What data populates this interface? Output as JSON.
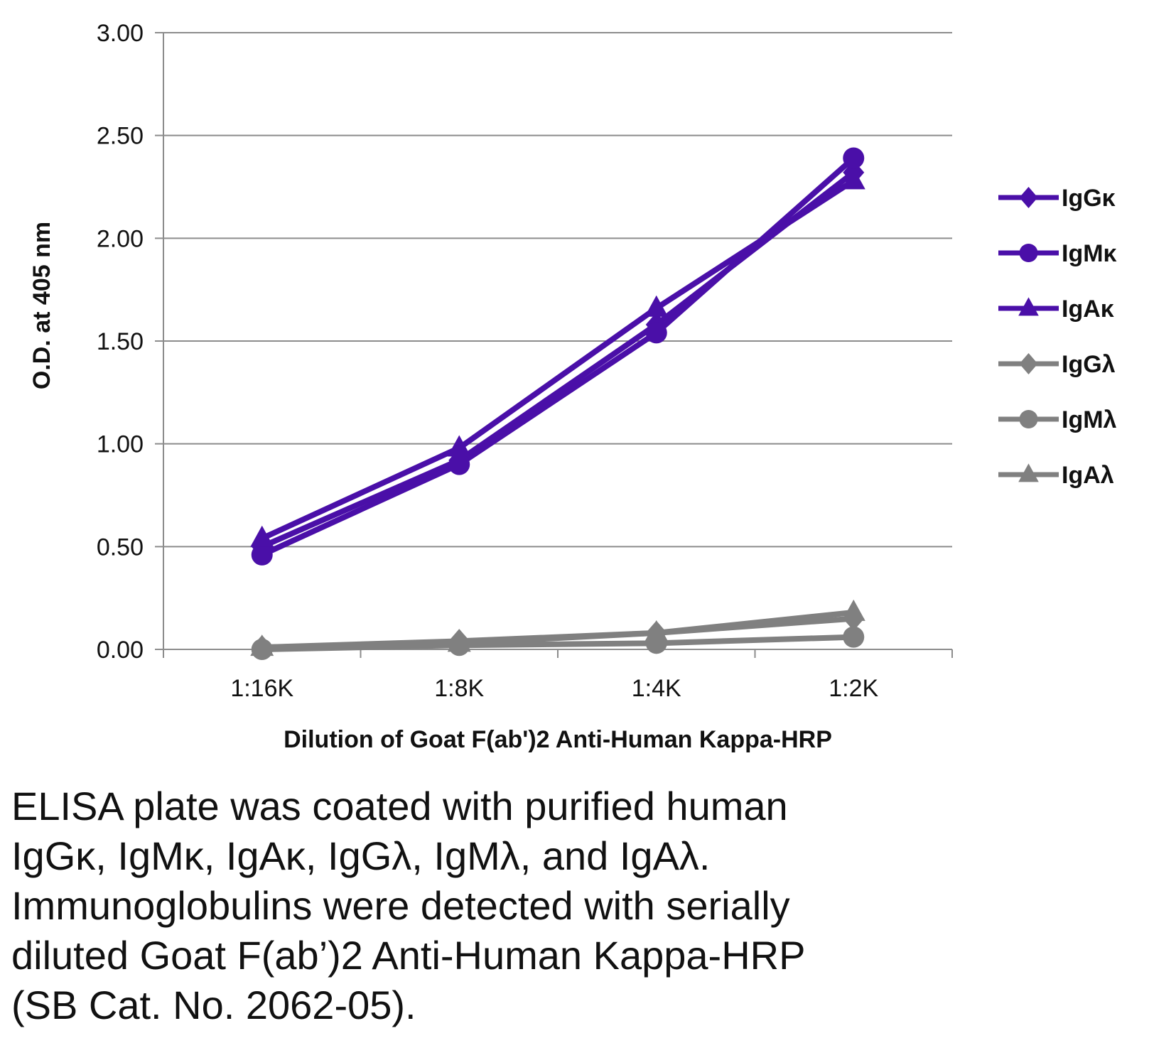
{
  "chart_data": {
    "type": "line",
    "categories": [
      "1:16K",
      "1:8K",
      "1:4K",
      "1:2K"
    ],
    "xlabel": "Dilution of Goat F(ab')2 Anti-Human Kappa-HRP",
    "ylabel": "O.D. at 405 nm",
    "ylim": [
      0,
      3
    ],
    "yticks": [
      "0.00",
      "0.50",
      "1.00",
      "1.50",
      "2.00",
      "2.50",
      "3.00"
    ],
    "grid": true,
    "legend_position": "right",
    "series": [
      {
        "name": "IgGκ",
        "marker": "diamond",
        "color": "#4a0fa8",
        "values": [
          0.5,
          0.92,
          1.58,
          2.32
        ]
      },
      {
        "name": "IgMκ",
        "marker": "circle",
        "color": "#4a0fa8",
        "values": [
          0.46,
          0.9,
          1.54,
          2.39
        ]
      },
      {
        "name": "IgAκ",
        "marker": "triangle",
        "color": "#4a0fa8",
        "values": [
          0.54,
          0.98,
          1.66,
          2.28
        ]
      },
      {
        "name": "IgGλ",
        "marker": "diamond",
        "color": "#808080",
        "values": [
          0.01,
          0.04,
          0.08,
          0.15
        ]
      },
      {
        "name": "IgMλ",
        "marker": "circle",
        "color": "#808080",
        "values": [
          0.0,
          0.02,
          0.03,
          0.06
        ]
      },
      {
        "name": "IgAλ",
        "marker": "triangle",
        "color": "#808080",
        "values": [
          0.01,
          0.03,
          0.08,
          0.18
        ]
      }
    ]
  },
  "caption": {
    "line1": "ELISA plate was coated with purified human",
    "line2": "IgGκ, IgMκ, IgAκ, IgGλ, IgMλ, and IgAλ.",
    "line3": "Immunoglobulins were detected with serially",
    "line4": "diluted Goat F(ab’)2 Anti-Human Kappa-HRP",
    "line5": "(SB Cat. No. 2062-05)."
  }
}
